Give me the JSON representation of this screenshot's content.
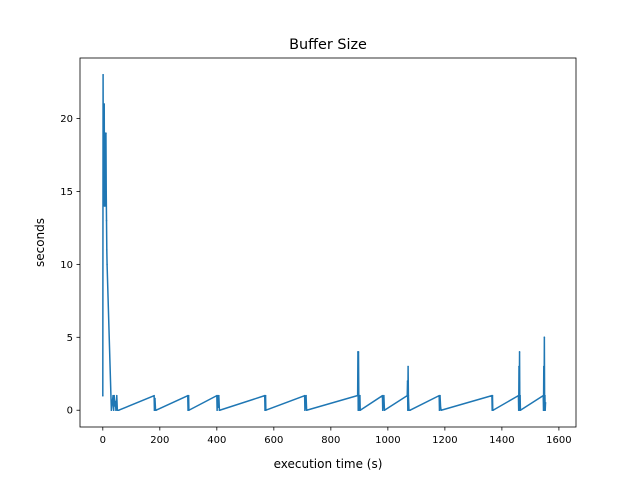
{
  "chart_data": {
    "type": "line",
    "title": "Buffer Size",
    "xlabel": "execution time (s)",
    "ylabel": "seconds",
    "xlim": [
      -80,
      1660
    ],
    "ylim": [
      -1.15,
      24.15
    ],
    "xticks": [
      0,
      200,
      400,
      600,
      800,
      1000,
      1200,
      1400,
      1600
    ],
    "yticks": [
      0,
      5,
      10,
      15,
      20
    ],
    "grid": false,
    "series": [
      {
        "color": "#1f77b4",
        "x": [
          0,
          1,
          2,
          3,
          4,
          5,
          6,
          7,
          8,
          9,
          10,
          11,
          12,
          13,
          14,
          15,
          30,
          33,
          36,
          38,
          40,
          42,
          44,
          46,
          49,
          51,
          56,
          180,
          181,
          183,
          185,
          187,
          298,
          299,
          300,
          301,
          302,
          400,
          401,
          403,
          405,
          407,
          409,
          410,
          568,
          569,
          570,
          571,
          572,
          708,
          709,
          711,
          713,
          715,
          893,
          894,
          895,
          896,
          897,
          898,
          899,
          902,
          903,
          981,
          982,
          984,
          986,
          988,
          1068,
          1069,
          1070,
          1071,
          1072,
          1074,
          1078,
          1180,
          1181,
          1183,
          1185,
          1187,
          1365,
          1366,
          1367,
          1368,
          1369,
          1458,
          1459,
          1460,
          1461,
          1462,
          1463,
          1464,
          1465,
          1545,
          1546,
          1547,
          1548,
          1549,
          1550,
          1551,
          1552,
          1553
        ],
        "y": [
          1,
          23,
          14,
          20,
          15,
          21,
          14,
          19,
          16,
          18,
          14,
          19,
          15,
          13,
          11,
          10,
          0,
          0.5,
          1,
          0,
          1,
          0.3,
          0.6,
          0,
          1,
          0,
          0,
          1,
          0,
          0.8,
          0,
          0,
          1,
          0,
          0.8,
          1,
          0,
          1,
          0,
          1,
          0.2,
          1,
          0,
          0,
          1,
          0,
          0.8,
          1,
          0,
          1,
          0,
          0.5,
          1,
          0,
          1,
          1,
          4,
          0,
          4,
          1,
          0,
          1,
          0,
          1,
          0,
          0.8,
          1,
          0,
          1,
          2,
          0,
          3,
          1,
          0,
          0,
          1,
          0,
          1,
          0.2,
          0,
          1,
          0,
          1,
          0,
          0,
          1,
          0,
          3,
          0.5,
          4,
          0,
          1,
          0,
          1,
          0,
          3,
          0,
          5,
          0,
          1,
          0,
          0.5
        ]
      }
    ]
  }
}
